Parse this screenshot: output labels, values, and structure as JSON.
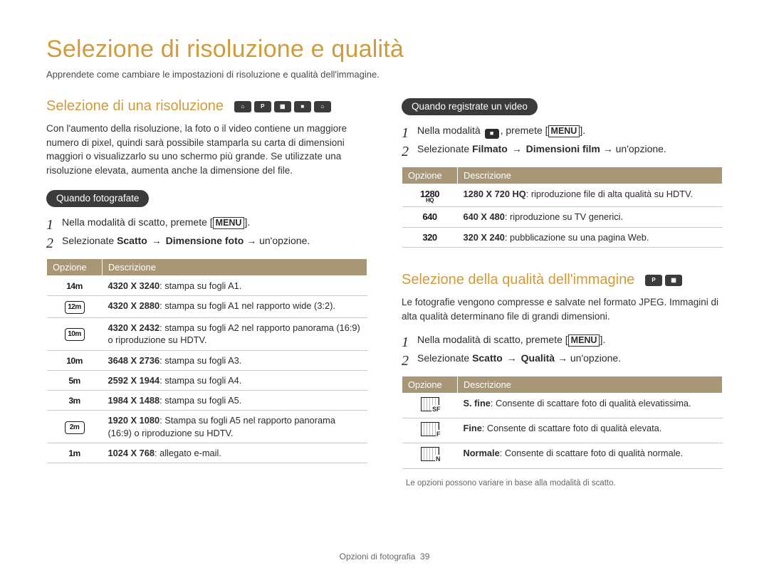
{
  "main_title": "Selezione di risoluzione e qualità",
  "intro": "Apprendete come cambiare le impostazioni di risoluzione e qualità dell'immagine.",
  "accent_color": "#d29b3a",
  "table_header_bg": "#a89777",
  "sec_res": {
    "title": "Selezione di una risoluzione",
    "mode_icons": [
      "SMART",
      "P",
      "SCENE",
      "MOVIE",
      "SMART"
    ],
    "body": "Con l'aumento della risoluzione, la foto o il video contiene un maggiore numero di pixel, quindi sarà possibile stamparla su carta di dimensioni maggiori o visualizzarlo su uno schermo più grande. Se utilizzate una risoluzione elevata, aumenta anche la dimensione del file.",
    "photo_pill": "Quando fotografate",
    "photo_step1_pre": "Nella modalità di scatto, premete [",
    "photo_step1_btn": "MENU",
    "photo_step1_post": "].",
    "photo_step2_pre": "Selezionate ",
    "photo_step2_b1": "Scatto",
    "photo_step2_arrow": " → ",
    "photo_step2_b2": "Dimensione foto",
    "photo_step2_post": " → un'opzione.",
    "table_h1": "Opzione",
    "table_h2": "Descrizione",
    "photo_rows": [
      {
        "icon": "14m",
        "icon_style": "plain",
        "bold": "4320 X 3240",
        "rest": ": stampa su fogli A1."
      },
      {
        "icon": "12m",
        "icon_style": "boxed",
        "bold": "4320 X 2880",
        "rest": ": stampa su fogli A1 nel rapporto wide (3:2)."
      },
      {
        "icon": "10m",
        "icon_style": "boxed",
        "bold": "4320 X 2432",
        "rest": ": stampa su fogli A2 nel rapporto panorama (16:9) o riproduzione su HDTV."
      },
      {
        "icon": "10m",
        "icon_style": "plain",
        "bold": "3648 X 2736",
        "rest": ": stampa su fogli A3."
      },
      {
        "icon": "5m",
        "icon_style": "plain",
        "bold": "2592 X 1944",
        "rest": ": stampa su fogli A4."
      },
      {
        "icon": "3m",
        "icon_style": "plain",
        "bold": "1984 X 1488",
        "rest": ": stampa su fogli A5."
      },
      {
        "icon": "2m",
        "icon_style": "boxed",
        "bold": "1920 X 1080",
        "rest": ": Stampa su fogli A5 nel rapporto panorama (16:9) o riproduzione su HDTV."
      },
      {
        "icon": "1m",
        "icon_style": "plain",
        "bold": "1024 X 768",
        "rest": ": allegato e-mail."
      }
    ]
  },
  "sec_video": {
    "pill": "Quando registrate un video",
    "step1_pre": "Nella modalità ",
    "step1_icon": "movie",
    "step1_mid": ", premete [",
    "step1_btn": "MENU",
    "step1_post": "].",
    "step2_pre": "Selezionate ",
    "step2_b1": "Filmato",
    "step2_arrow": " → ",
    "step2_b2": "Dimensioni film",
    "step2_post": " → un'opzione.",
    "rows": [
      {
        "icon1": "1280",
        "icon2": "HQ",
        "bold": "1280 X 720 HQ",
        "rest": ": riproduzione file di alta qualità su HDTV."
      },
      {
        "icon1": "640",
        "icon2": "",
        "bold": "640 X 480",
        "rest": ": riproduzione su TV generici."
      },
      {
        "icon1": "320",
        "icon2": "",
        "bold": "320 X 240",
        "rest": ": pubblicazione su una pagina Web."
      }
    ]
  },
  "sec_qual": {
    "title": "Selezione della qualità dell'immagine",
    "mode_icons": [
      "P",
      "SCENE"
    ],
    "body": "Le fotografie vengono compresse e salvate nel formato JPEG. Immagini di alta qualità determinano file di grandi dimensioni.",
    "step1_pre": "Nella modalità di scatto, premete [",
    "step1_btn": "MENU",
    "step1_post": "].",
    "step2_pre": "Selezionate ",
    "step2_b1": "Scatto",
    "step2_arrow": " → ",
    "step2_b2": "Qualità",
    "step2_post": " → un'opzione.",
    "rows": [
      {
        "tag": "SF",
        "bold": "S. fine",
        "rest": ": Consente di scattare foto di qualità elevatissima."
      },
      {
        "tag": "F",
        "bold": "Fine",
        "rest": ": Consente di scattare foto di qualità elevata."
      },
      {
        "tag": "N",
        "bold": "Normale",
        "rest": ": Consente di scattare foto di qualità normale."
      }
    ],
    "footnote": "Le opzioni possono variare in base alla modalità di scatto."
  },
  "footer_label": "Opzioni di fotografia",
  "footer_page": "39"
}
